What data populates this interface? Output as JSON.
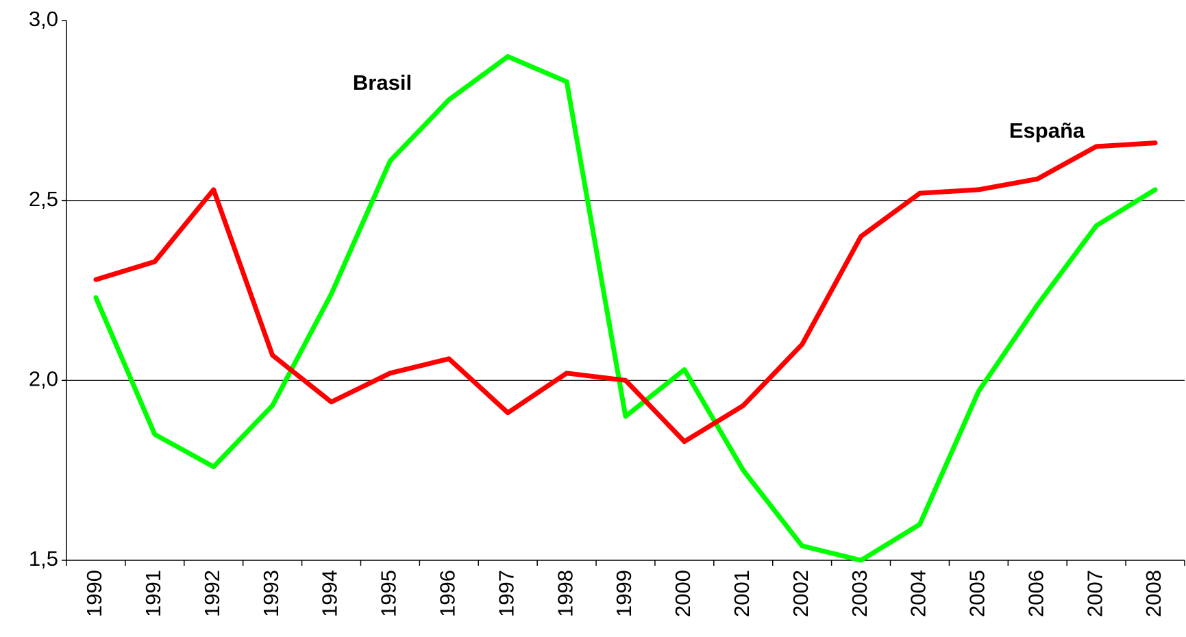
{
  "chart_data": {
    "type": "line",
    "categories": [
      "1990",
      "1991",
      "1992",
      "1993",
      "1994",
      "1995",
      "1996",
      "1997",
      "1998",
      "1999",
      "2000",
      "2001",
      "2002",
      "2003",
      "2004",
      "2005",
      "2006",
      "2007",
      "2008"
    ],
    "series": [
      {
        "name": "Brasil",
        "color": "#00ff00",
        "values": [
          2.23,
          1.85,
          1.76,
          1.93,
          2.24,
          2.61,
          2.78,
          2.9,
          2.83,
          1.9,
          2.03,
          1.75,
          1.54,
          1.5,
          1.6,
          1.97,
          2.21,
          2.43,
          2.53
        ]
      },
      {
        "name": "España",
        "color": "#ff0000",
        "values": [
          2.28,
          2.33,
          2.53,
          2.07,
          1.94,
          2.02,
          2.06,
          1.91,
          2.02,
          2.0,
          1.83,
          1.93,
          2.1,
          2.4,
          2.52,
          2.53,
          2.56,
          2.65,
          2.66
        ]
      }
    ],
    "ylim": [
      1.5,
      3.0
    ],
    "yticks": [
      {
        "value": 1.5,
        "label": "1,5"
      },
      {
        "value": 2.0,
        "label": "2,0"
      },
      {
        "value": 2.5,
        "label": "2,5"
      },
      {
        "value": 3.0,
        "label": "3,0"
      }
    ],
    "grid": true
  }
}
